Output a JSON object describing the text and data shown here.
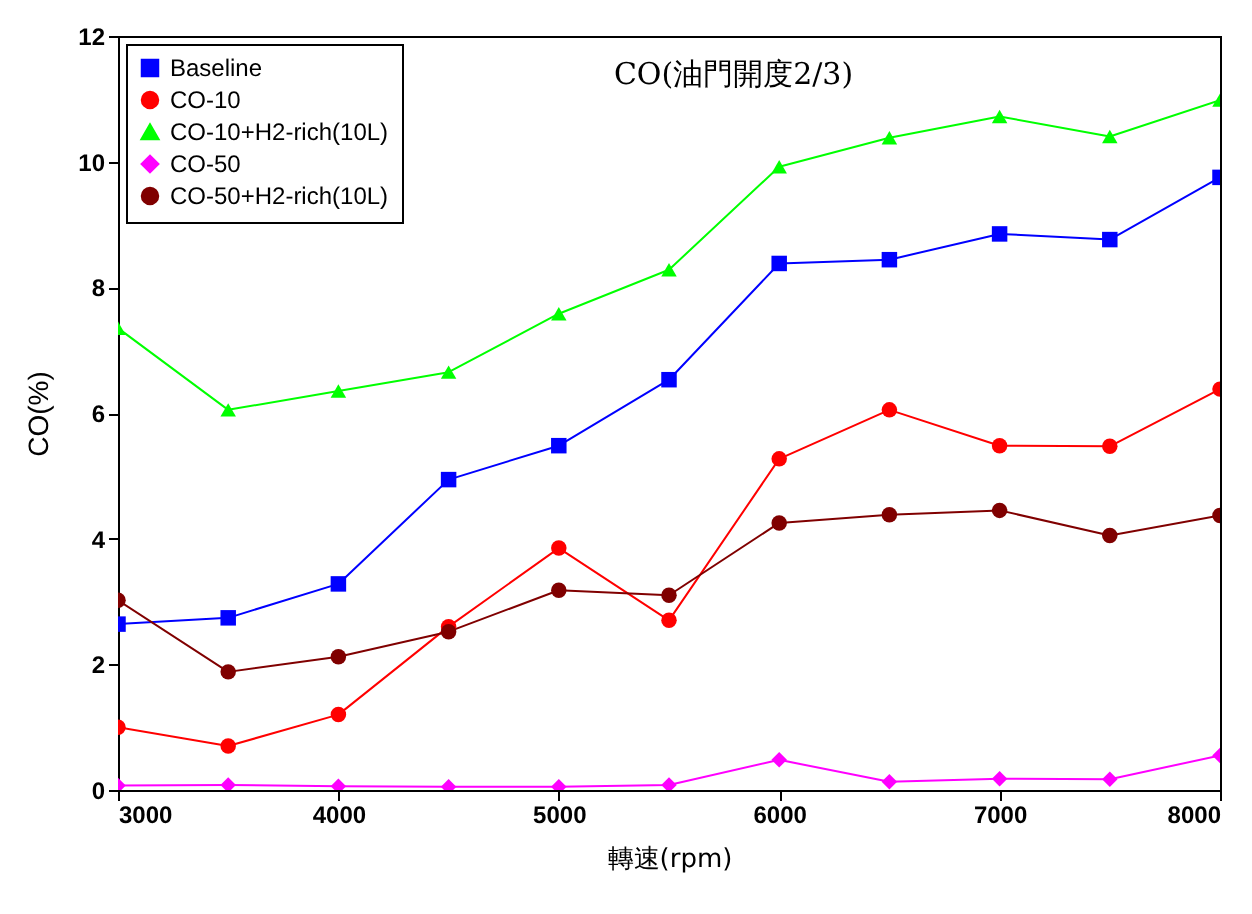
{
  "chart_data": {
    "type": "line",
    "xlabel": "轉速(rpm)",
    "ylabel": "CO(%)",
    "annotations": [
      "CO(油門開度2/3)"
    ],
    "x": [
      3000,
      3500,
      4000,
      4500,
      5000,
      5500,
      6000,
      6500,
      7000,
      7500,
      8000
    ],
    "xlim": [
      3000,
      8000
    ],
    "xticks": [
      3000,
      4000,
      5000,
      6000,
      7000,
      8000
    ],
    "ylim": [
      0,
      12
    ],
    "yticks": [
      0,
      2,
      4,
      6,
      8,
      10,
      12
    ],
    "grid": false,
    "legend": "top left",
    "line_style": "solid",
    "series": [
      {
        "name": "Baseline",
        "color": "#0000ff",
        "marker": "square",
        "values": [
          2.64,
          2.74,
          3.28,
          4.94,
          5.48,
          6.53,
          8.38,
          8.44,
          8.85,
          8.76,
          9.75
        ]
      },
      {
        "name": "CO-10",
        "color": "#ff0000",
        "marker": "circle",
        "values": [
          1.0,
          0.7,
          1.2,
          2.6,
          3.85,
          2.7,
          5.27,
          6.05,
          5.48,
          5.47,
          6.38
        ]
      },
      {
        "name": "CO-10+H2-rich(10L)",
        "color": "#00ff00",
        "marker": "triangle",
        "values": [
          7.35,
          6.05,
          6.35,
          6.65,
          7.58,
          8.28,
          9.92,
          10.38,
          10.72,
          10.4,
          10.98
        ]
      },
      {
        "name": "CO-50",
        "color": "#ff00ff",
        "marker": "diamond",
        "values": [
          0.07,
          0.08,
          0.06,
          0.05,
          0.05,
          0.08,
          0.48,
          0.13,
          0.18,
          0.17,
          0.55
        ]
      },
      {
        "name": "CO-50+H2-rich(10L)",
        "color": "#800000",
        "marker": "circle",
        "values": [
          3.02,
          1.88,
          2.12,
          2.52,
          3.18,
          3.1,
          4.25,
          4.38,
          4.45,
          4.05,
          4.37
        ]
      }
    ]
  }
}
